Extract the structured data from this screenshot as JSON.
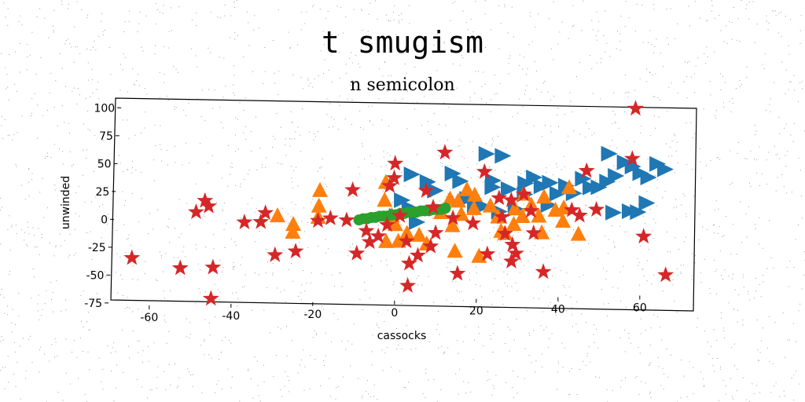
{
  "suptitle": "t smugism",
  "chart_data": {
    "type": "scatter",
    "title": "n semicolon",
    "xlabel": "cassocks",
    "ylabel": "unwinded",
    "xlim": [
      -70,
      72
    ],
    "ylim": [
      -78,
      103
    ],
    "xticks": [
      -60,
      -40,
      -20,
      0,
      20,
      40,
      60
    ],
    "yticks": [
      -75,
      -50,
      -25,
      0,
      25,
      50,
      75,
      100
    ],
    "grid": false,
    "colors": {
      "blue": "#1f77b4",
      "orange": "#ff7f0e",
      "green": "#2ca02c",
      "red": "#d62728"
    },
    "series": [
      {
        "marker": "triangle-right",
        "color": "#1f77b4",
        "points": [
          [
            2,
            35
          ],
          [
            6,
            28
          ],
          [
            0,
            12
          ],
          [
            2,
            5
          ],
          [
            -1,
            -2
          ],
          [
            4,
            -8
          ],
          [
            8,
            20
          ],
          [
            12,
            35
          ],
          [
            14,
            28
          ],
          [
            16,
            12
          ],
          [
            18,
            5
          ],
          [
            20,
            52
          ],
          [
            24,
            50
          ],
          [
            22,
            28
          ],
          [
            22,
            22
          ],
          [
            26,
            20
          ],
          [
            30,
            25
          ],
          [
            32,
            30
          ],
          [
            34,
            22
          ],
          [
            20,
            5
          ],
          [
            24,
            0
          ],
          [
            28,
            2
          ],
          [
            30,
            15
          ],
          [
            36,
            5
          ],
          [
            38,
            15
          ],
          [
            44,
            28
          ],
          [
            46,
            20
          ],
          [
            50,
            50
          ],
          [
            54,
            42
          ],
          [
            56,
            38
          ],
          [
            58,
            32
          ],
          [
            60,
            28
          ],
          [
            62,
            40
          ],
          [
            64,
            35
          ],
          [
            60,
            5
          ],
          [
            56,
            -2
          ],
          [
            58,
            -3
          ],
          [
            48,
            20
          ],
          [
            50,
            25
          ],
          [
            52,
            30
          ],
          [
            42,
            15
          ],
          [
            40,
            22
          ],
          [
            36,
            25
          ],
          [
            52,
            -3
          ]
        ]
      },
      {
        "marker": "triangle-up",
        "color": "#ff7f0e",
        "points": [
          [
            -30,
            0
          ],
          [
            -26,
            -8
          ],
          [
            -26,
            -15
          ],
          [
            -20,
            -2
          ],
          [
            -20,
            8
          ],
          [
            -20,
            22
          ],
          [
            -4,
            28
          ],
          [
            -4,
            12
          ],
          [
            -2,
            -2
          ],
          [
            -1,
            -10
          ],
          [
            -3,
            -25
          ],
          [
            0,
            -25
          ],
          [
            2,
            -18
          ],
          [
            5,
            -20
          ],
          [
            7,
            -28
          ],
          [
            10,
            0
          ],
          [
            12,
            12
          ],
          [
            14,
            10
          ],
          [
            16,
            20
          ],
          [
            18,
            15
          ],
          [
            18,
            3
          ],
          [
            22,
            5
          ],
          [
            24,
            -5
          ],
          [
            25,
            -18
          ],
          [
            26,
            -20
          ],
          [
            28,
            -12
          ],
          [
            30,
            -5
          ],
          [
            32,
            5
          ],
          [
            35,
            12
          ],
          [
            38,
            0
          ],
          [
            40,
            -10
          ],
          [
            41,
            20
          ],
          [
            44,
            -22
          ],
          [
            13,
            -12
          ],
          [
            14,
            -35
          ],
          [
            20,
            -40
          ],
          [
            28,
            2
          ],
          [
            30,
            15
          ],
          [
            34,
            -5
          ],
          [
            15,
            -2
          ],
          [
            35,
            -20
          ],
          [
            40,
            2
          ]
        ]
      },
      {
        "marker": "circle",
        "color": "#2ca02c",
        "points": [
          [
            -10,
            -5
          ],
          [
            -9,
            -4
          ],
          [
            -8,
            -4
          ],
          [
            -7,
            -3
          ],
          [
            -6,
            -3
          ],
          [
            -5,
            -2
          ],
          [
            -4,
            -2
          ],
          [
            -3,
            -2
          ],
          [
            -2,
            -1
          ],
          [
            -1,
            -1
          ],
          [
            0,
            0
          ],
          [
            1,
            0
          ],
          [
            2,
            1
          ],
          [
            3,
            1
          ],
          [
            4,
            1
          ],
          [
            5,
            2
          ],
          [
            6,
            2
          ],
          [
            7,
            2
          ],
          [
            8,
            3
          ],
          [
            9,
            3
          ],
          [
            10,
            3
          ],
          [
            11,
            4
          ]
        ]
      },
      {
        "marker": "star",
        "color": "#d62728",
        "points": [
          [
            -65,
            -35
          ],
          [
            -53,
            -45
          ],
          [
            -50,
            5
          ],
          [
            -48,
            15
          ],
          [
            -47,
            10
          ],
          [
            -45,
            -45
          ],
          [
            -45,
            -73
          ],
          [
            -38,
            -5
          ],
          [
            -34,
            -5
          ],
          [
            -33,
            3
          ],
          [
            -30,
            -35
          ],
          [
            -25,
            -32
          ],
          [
            -20,
            -5
          ],
          [
            -17,
            -3
          ],
          [
            -13,
            -5
          ],
          [
            -12,
            22
          ],
          [
            -10,
            -35
          ],
          [
            -8,
            -15
          ],
          [
            -7,
            -25
          ],
          [
            -5,
            -20
          ],
          [
            -3,
            -10
          ],
          [
            -3,
            25
          ],
          [
            -2,
            45
          ],
          [
            -2,
            32
          ],
          [
            0,
            -2
          ],
          [
            2,
            -25
          ],
          [
            3,
            -45
          ],
          [
            3,
            -65
          ],
          [
            5,
            -38
          ],
          [
            6,
            20
          ],
          [
            8,
            -30
          ],
          [
            8,
            5
          ],
          [
            9,
            -18
          ],
          [
            10,
            54
          ],
          [
            13,
            -5
          ],
          [
            15,
            -55
          ],
          [
            18,
            -10
          ],
          [
            20,
            36
          ],
          [
            22,
            -38
          ],
          [
            24,
            12
          ],
          [
            25,
            -5
          ],
          [
            26,
            -20
          ],
          [
            27,
            10
          ],
          [
            28,
            -30
          ],
          [
            28,
            -45
          ],
          [
            29,
            -38
          ],
          [
            30,
            15
          ],
          [
            32,
            0
          ],
          [
            33,
            -20
          ],
          [
            36,
            -55
          ],
          [
            42,
            0
          ],
          [
            44,
            -5
          ],
          [
            45,
            35
          ],
          [
            48,
            0
          ],
          [
            56,
            90
          ],
          [
            56,
            45
          ],
          [
            60,
            -25
          ],
          [
            66,
            -60
          ]
        ]
      }
    ]
  }
}
